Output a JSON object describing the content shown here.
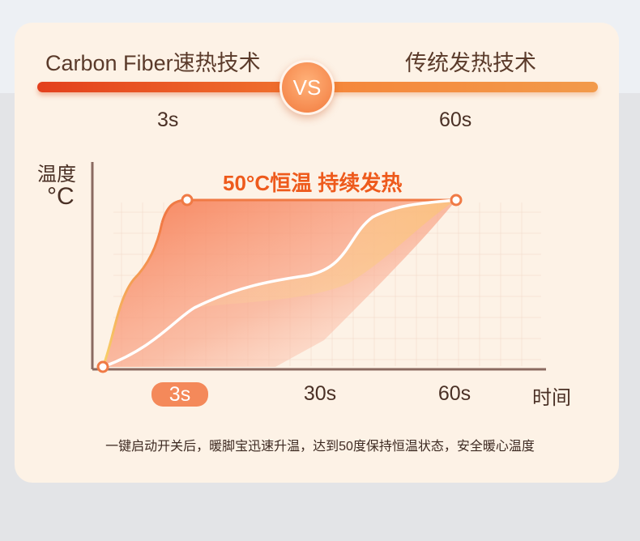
{
  "header": {
    "left_title": "Carbon Fiber速热技术",
    "right_title": "传统发热技术",
    "vs_label": "VS",
    "left_time": "3s",
    "right_time": "60s"
  },
  "colors": {
    "accent": "#ee5a1c",
    "fast_curve": "#f07a45",
    "slow_curve": "#ffffff",
    "card": "#fdf2e6",
    "text": "#4a3025"
  },
  "chart_data": {
    "type": "line",
    "ylabel": "温度",
    "yunit": "°C",
    "xlabel": "时间",
    "annotation": "50°C恒温 持续发热",
    "x_ticks": [
      "3s",
      "30s",
      "60s"
    ],
    "highlight_tick": "3s",
    "grid": true,
    "series": [
      {
        "points": [
          [
            0,
            0
          ],
          [
            3,
            50
          ],
          [
            60,
            50
          ]
        ]
      },
      {
        "points": [
          [
            0,
            0
          ],
          [
            60,
            50
          ]
        ]
      }
    ]
  },
  "footer": {
    "caption": "一键启动开关后，暖脚宝迅速升温，达到50度保持恒温状态，安全暖心温度"
  }
}
